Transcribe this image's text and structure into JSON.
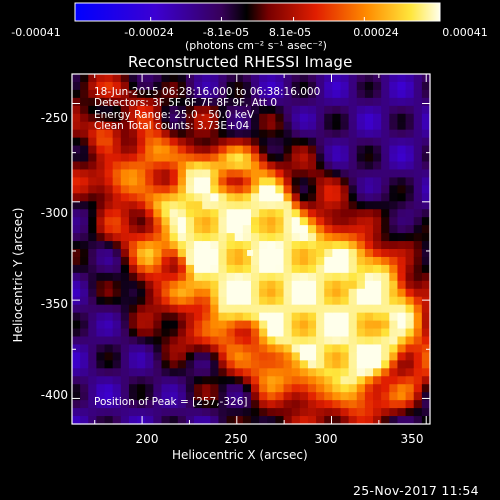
{
  "colorbar": {
    "ticks": [
      "-0.00041",
      "-0.00024",
      "-8.1e-05",
      "8.1e-05",
      "0.00024",
      "0.00041"
    ],
    "unit_label": "(photons cm⁻² s⁻¹ asec⁻²)",
    "range": [
      -0.00041,
      0.00041
    ]
  },
  "chart_data": {
    "type": "heatmap",
    "title": "Reconstructed RHESSI Image",
    "xlabel": "Heliocentric X (arcsec)",
    "ylabel": "Heliocentric Y (arcsec)",
    "xlim": [
      163,
      352
    ],
    "ylim": [
      -413,
      -235
    ],
    "xticks": [
      "200",
      "250",
      "300",
      "350"
    ],
    "yticks": [
      "-250",
      "-300",
      "-350",
      "-400"
    ],
    "xtick_values": [
      200,
      250,
      300,
      350
    ],
    "ytick_values": [
      -250,
      -300,
      -350,
      -400
    ],
    "annotations": [
      "18-Jun-2015 06:28:16.000 to 06:38:16.000",
      "Detectors: 3F 5F 6F 7F 8F 9F, Att 0",
      "Energy Range: 25.0 - 50.0 keV",
      "Clean    Total counts: 3.73E+04"
    ],
    "peak_label": "Position of Peak = [257,-326]",
    "peak": [
      257,
      -326
    ],
    "sources": [
      {
        "x": 257,
        "y": -326,
        "amp": 1.0
      },
      {
        "x": 247,
        "y": -305,
        "amp": 0.85
      },
      {
        "x": 312,
        "y": -358,
        "amp": 0.85
      },
      {
        "x": 300,
        "y": -345,
        "amp": 0.6
      },
      {
        "x": 325,
        "y": -375,
        "amp": 0.55
      },
      {
        "x": 180,
        "y": -265,
        "amp": 0.55
      },
      {
        "x": 210,
        "y": -300,
        "amp": 0.45
      },
      {
        "x": 225,
        "y": -345,
        "amp": 0.35
      },
      {
        "x": 270,
        "y": -365,
        "amp": 0.4
      },
      {
        "x": 290,
        "y": -395,
        "amp": 0.35
      }
    ]
  },
  "datestamp": "25-Nov-2017 11:54"
}
